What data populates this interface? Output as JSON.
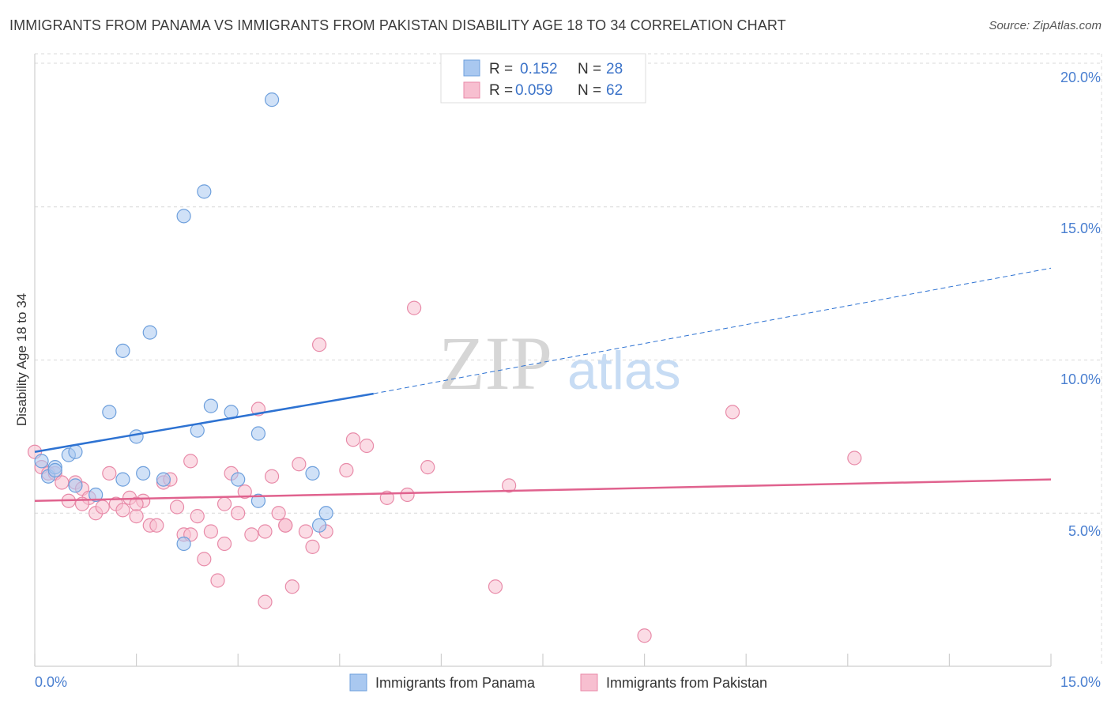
{
  "title": "IMMIGRANTS FROM PANAMA VS IMMIGRANTS FROM PAKISTAN DISABILITY AGE 18 TO 34 CORRELATION CHART",
  "source": "Source: ZipAtlas.com",
  "watermark": {
    "zip": "ZIP",
    "atlas": "atlas"
  },
  "colors": {
    "panama_fill": "#a9c8f0",
    "panama_stroke": "#6d9fdc",
    "panama_line": "#2d72d2",
    "pakistan_fill": "#f7bfd0",
    "pakistan_stroke": "#e88aa8",
    "pakistan_line": "#e0628e",
    "tick_text": "#4a7fd0",
    "grid": "#d8d8d8"
  },
  "legend": {
    "rows": [
      {
        "r_label": "R =",
        "r_value": "0.152",
        "n_label": "N =",
        "n_value": "28"
      },
      {
        "r_label": "R =",
        "r_value": "0.059",
        "n_label": "N =",
        "n_value": "62"
      }
    ]
  },
  "bottom_legend": [
    "Immigrants from Panama",
    "Immigrants from Pakistan"
  ],
  "chart_data": {
    "type": "scatter",
    "title": "IMMIGRANTS FROM PANAMA VS IMMIGRANTS FROM PAKISTAN DISABILITY AGE 18 TO 34 CORRELATION CHART",
    "xlabel": "",
    "ylabel": "Disability Age 18 to 34",
    "xlim": [
      0,
      15
    ],
    "ylim": [
      0,
      20
    ],
    "x_tick_labels": [
      "0.0%",
      "15.0%"
    ],
    "y_ticks": [
      5,
      10,
      15,
      20
    ],
    "y_tick_labels": [
      "5.0%",
      "10.0%",
      "15.0%",
      "20.0%"
    ],
    "grid": true,
    "legend_position": "top-center",
    "series": [
      {
        "name": "Immigrants from Panama",
        "r": 0.152,
        "n": 28,
        "points": [
          [
            0.1,
            6.7
          ],
          [
            0.2,
            6.2
          ],
          [
            0.3,
            6.5
          ],
          [
            0.5,
            6.9
          ],
          [
            0.6,
            7.0
          ],
          [
            0.6,
            5.9
          ],
          [
            1.1,
            8.3
          ],
          [
            1.3,
            10.3
          ],
          [
            1.5,
            7.5
          ],
          [
            1.7,
            10.9
          ],
          [
            1.6,
            6.3
          ],
          [
            1.9,
            6.1
          ],
          [
            2.2,
            14.7
          ],
          [
            2.5,
            15.5
          ],
          [
            2.4,
            7.7
          ],
          [
            2.6,
            8.5
          ],
          [
            2.9,
            8.3
          ],
          [
            3.3,
            7.6
          ],
          [
            3.5,
            18.5
          ],
          [
            3.0,
            6.1
          ],
          [
            4.1,
            6.3
          ],
          [
            4.2,
            4.6
          ],
          [
            3.3,
            5.4
          ],
          [
            4.3,
            5.0
          ],
          [
            1.3,
            6.1
          ],
          [
            0.9,
            5.6
          ],
          [
            2.2,
            4.0
          ],
          [
            0.3,
            6.4
          ]
        ],
        "trend": {
          "x0": 0.0,
          "y0": 7.0,
          "x1": 5.0,
          "y1": 8.9,
          "dashed_to_x": 15.0,
          "dashed_to_y": 13.0
        }
      },
      {
        "name": "Immigrants from Pakistan",
        "r": 0.059,
        "n": 62,
        "points": [
          [
            0.0,
            7.0
          ],
          [
            0.1,
            6.5
          ],
          [
            0.2,
            6.3
          ],
          [
            0.3,
            6.3
          ],
          [
            0.4,
            6.0
          ],
          [
            0.5,
            5.4
          ],
          [
            0.6,
            6.0
          ],
          [
            0.7,
            5.8
          ],
          [
            0.8,
            5.5
          ],
          [
            0.9,
            5.0
          ],
          [
            1.0,
            5.2
          ],
          [
            1.1,
            6.3
          ],
          [
            1.2,
            5.3
          ],
          [
            1.3,
            5.1
          ],
          [
            1.4,
            5.5
          ],
          [
            1.5,
            4.9
          ],
          [
            1.6,
            5.4
          ],
          [
            1.7,
            4.6
          ],
          [
            1.8,
            4.6
          ],
          [
            1.9,
            6.0
          ],
          [
            2.0,
            6.1
          ],
          [
            2.1,
            5.2
          ],
          [
            2.2,
            4.3
          ],
          [
            2.3,
            6.7
          ],
          [
            2.4,
            4.9
          ],
          [
            2.5,
            3.5
          ],
          [
            2.6,
            4.4
          ],
          [
            2.7,
            2.8
          ],
          [
            2.8,
            5.3
          ],
          [
            2.9,
            6.3
          ],
          [
            3.0,
            5.0
          ],
          [
            3.1,
            5.7
          ],
          [
            3.2,
            4.3
          ],
          [
            3.3,
            8.4
          ],
          [
            3.4,
            2.1
          ],
          [
            3.5,
            6.2
          ],
          [
            3.6,
            5.0
          ],
          [
            3.7,
            4.6
          ],
          [
            3.8,
            2.6
          ],
          [
            3.9,
            6.6
          ],
          [
            4.0,
            4.4
          ],
          [
            4.1,
            3.9
          ],
          [
            4.2,
            10.5
          ],
          [
            4.3,
            4.4
          ],
          [
            4.6,
            6.4
          ],
          [
            4.7,
            7.4
          ],
          [
            4.9,
            7.2
          ],
          [
            5.2,
            5.5
          ],
          [
            5.6,
            11.7
          ],
          [
            5.8,
            6.5
          ],
          [
            6.8,
            2.6
          ],
          [
            7.0,
            5.9
          ],
          [
            9.0,
            1.0
          ],
          [
            10.3,
            8.3
          ],
          [
            12.1,
            6.8
          ],
          [
            3.4,
            4.4
          ],
          [
            2.3,
            4.3
          ],
          [
            0.7,
            5.3
          ],
          [
            1.5,
            5.3
          ],
          [
            2.8,
            4.0
          ],
          [
            3.7,
            4.6
          ],
          [
            5.5,
            5.6
          ]
        ],
        "trend": {
          "x0": 0.0,
          "y0": 5.4,
          "x1": 15.0,
          "y1": 6.1
        }
      }
    ]
  }
}
